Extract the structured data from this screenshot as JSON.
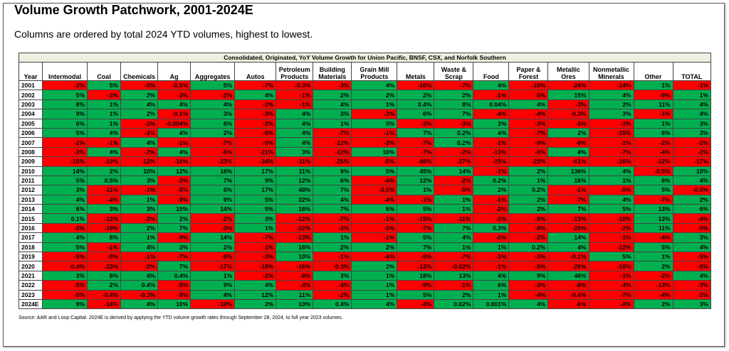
{
  "header": {
    "title": "Volume Growth Patchwork, 2001-2024E",
    "subtitle": "Columns are ordered by total 2024 YTD volumes, highest to lowest."
  },
  "table": {
    "caption": "Consolidated, Originated, YoY Volume Growth for Union Pacific, BNSF, CSX, and Norfolk Southern",
    "columns": [
      "Year",
      "Intermodal",
      "Coal",
      "Chemicals",
      "Ag",
      "Aggregates",
      "Autos",
      "Petroleum Products",
      "Building Materials",
      "Grain Mill Products",
      "Metals",
      "Waste & Scrap",
      "Food",
      "Paper & Forest",
      "Metallic Ores",
      "Nonmetallic Minerals",
      "Other",
      "TOTAL"
    ],
    "rows": [
      [
        "2001",
        "-3%",
        "5%",
        "-5%",
        "-0.5%",
        "5%",
        "-7%",
        "-0.3%",
        "-3%",
        "4%",
        "-10%",
        "-7%",
        "4%",
        "-10%",
        "-24%",
        "-14%",
        "1%",
        "-1%"
      ],
      [
        "2002",
        "5%",
        "-3%",
        "2%",
        "-3%",
        "-2%",
        "4%",
        "-1%",
        "2%",
        "2%",
        "2%",
        "2%",
        "-1%",
        "-5%",
        "15%",
        "4%",
        "-9%",
        "1%"
      ],
      [
        "2003",
        "8%",
        "1%",
        "4%",
        "4%",
        "4%",
        "-2%",
        "-1%",
        "4%",
        "1%",
        "0.4%",
        "8%",
        "0.04%",
        "4%",
        "-3%",
        "2%",
        "11%",
        "4%"
      ],
      [
        "2004",
        "9%",
        "1%",
        "2%",
        "-0.1%",
        "3%",
        "-3%",
        "4%",
        "3%",
        "-3%",
        "6%",
        "7%",
        "-4%",
        "-4%",
        "-0.3%",
        "3%",
        "-1%",
        "4%"
      ],
      [
        "2005",
        "6%",
        "1%",
        "-2%",
        "-0.004%",
        "6%",
        "-2%",
        "4%",
        "1%",
        "5%",
        "-3%",
        "-3%",
        "3%",
        "-3%",
        "-3%",
        "-3%",
        "1%",
        "3%"
      ],
      [
        "2006",
        "5%",
        "4%",
        "-1%",
        "4%",
        "2%",
        "-6%",
        "4%",
        "-7%",
        "-1%",
        "7%",
        "0.2%",
        "4%",
        "-7%",
        "2%",
        "-15%",
        "6%",
        "3%"
      ],
      [
        "2007",
        "-2%",
        "-1%",
        "4%",
        "-1%",
        "-7%",
        "-5%",
        "4%",
        "-12%",
        "-3%",
        "-7%",
        "0.2%",
        "-1%",
        "-9%",
        "-6%",
        "-1%",
        "-2%",
        "-2%"
      ],
      [
        "2008",
        "-3%",
        "4%",
        "-2%",
        "4%",
        "-6%",
        "-21%",
        "3%",
        "-12%",
        "10%",
        "-7%",
        "-2%",
        "-13%",
        "-6%",
        "4%",
        "-7%",
        "-4%",
        "-2%"
      ],
      [
        "2009",
        "-15%",
        "-13%",
        "-12%",
        "-16%",
        "-23%",
        "-34%",
        "-11%",
        "-25%",
        "-5%",
        "-46%",
        "-27%",
        "-15%",
        "-23%",
        "-61%",
        "-16%",
        "-12%",
        "-17%"
      ],
      [
        "2010",
        "14%",
        "2%",
        "10%",
        "12%",
        "16%",
        "17%",
        "11%",
        "9%",
        "5%",
        "45%",
        "14%",
        "-1%",
        "2%",
        "136%",
        "4%",
        "-0.5%",
        "10%"
      ],
      [
        "2011",
        "5%",
        "0.5%",
        "3%",
        "-3%",
        "7%",
        "9%",
        "12%",
        "6%",
        "-4%",
        "12%",
        "-2%",
        "0.2%",
        "1%",
        "16%",
        "1%",
        "6%",
        "4%"
      ],
      [
        "2012",
        "3%",
        "-11%",
        "-1%",
        "-8%",
        "6%",
        "17%",
        "48%",
        "7%",
        "-0.5%",
        "1%",
        "-5%",
        "2%",
        "0.2%",
        "-1%",
        "-5%",
        "5%",
        "-0.5%"
      ],
      [
        "2013",
        "4%",
        "-4%",
        "1%",
        "-9%",
        "9%",
        "5%",
        "32%",
        "4%",
        "-4%",
        "-1%",
        "1%",
        "-1%",
        "2%",
        "-7%",
        "4%",
        "-7%",
        "2%"
      ],
      [
        "2014",
        "6%",
        "3%",
        "3%",
        "15%",
        "14%",
        "5%",
        "16%",
        "7%",
        "6%",
        "5%",
        "1%",
        "-2%",
        "2%",
        "7%",
        "5%",
        "13%",
        "6%"
      ],
      [
        "2015",
        "0.1%",
        "-13%",
        "-2%",
        "2%",
        "-2%",
        "3%",
        "-12%",
        "-7%",
        "-1%",
        "-15%",
        "-11%",
        "-3%",
        "-5%",
        "-13%",
        "-10%",
        "13%",
        "-4%"
      ],
      [
        "2016",
        "-2%",
        "-19%",
        "2%",
        "7%",
        "-3%",
        "1%",
        "-22%",
        "-3%",
        "-3%",
        "-7%",
        "7%",
        "0.3%",
        "-8%",
        "-25%",
        "-2%",
        "11%",
        "-5%"
      ],
      [
        "2017",
        "4%",
        "8%",
        "1%",
        "-3%",
        "14%",
        "-7%",
        "-13%",
        "1%",
        "-1%",
        "5%",
        "4%",
        "-2%",
        "-2%",
        "14%",
        "-1%",
        "-4%",
        "3%"
      ],
      [
        "2018",
        "5%",
        "-1%",
        "4%",
        "3%",
        "2%",
        "-1%",
        "16%",
        "2%",
        "2%",
        "7%",
        "1%",
        "1%",
        "0.2%",
        "4%",
        "-12%",
        "5%",
        "4%"
      ],
      [
        "2019",
        "-5%",
        "-9%",
        "-1%",
        "-7%",
        "-9%",
        "-3%",
        "10%",
        "-1%",
        "-4%",
        "-8%",
        "-7%",
        "-3%",
        "-3%",
        "-0.1%",
        "5%",
        "1%",
        "-5%"
      ],
      [
        "2020",
        "-0.4%",
        "-23%",
        "-2%",
        "7%",
        "-17%",
        "-18%",
        "-16%",
        "-0.3%",
        "2%",
        "-13%",
        "-0.02%",
        "-1%",
        "-5%",
        "-26%",
        "-10%",
        "2%",
        "-6%"
      ],
      [
        "2021",
        "3%",
        "8%",
        "4%",
        "0.4%",
        "1%",
        "-2%",
        "-8%",
        "3%",
        "1%",
        "18%",
        "13%",
        "4%",
        "9%",
        "46%",
        "-1%",
        "-2%",
        "4%"
      ],
      [
        "2022",
        "-5%",
        "2%",
        "0.4%",
        "-5%",
        "9%",
        "4%",
        "-4%",
        "-4%",
        "1%",
        "-9%",
        "-1%",
        "6%",
        "-3%",
        "-8%",
        "-4%",
        "-13%",
        "-3%"
      ],
      [
        "2023",
        "-5%",
        "-0.4%",
        "-0.3%",
        "-9%",
        "4%",
        "12%",
        "11%",
        "-2%",
        "1%",
        "5%",
        "2%",
        "1%",
        "-4%",
        "-0.4%",
        "-7%",
        "-4%",
        "-2%"
      ],
      [
        "2024E",
        "9%",
        "-14%",
        "4%",
        "10%",
        "-10%",
        "2%",
        "10%",
        "0.4%",
        "4%",
        "-4%",
        "0.02%",
        "0.001%",
        "4%",
        "-6%",
        "-8%",
        "2%",
        "3%"
      ]
    ]
  },
  "footer": {
    "source": "Source: AAR and Loop Capital. 2024E is derived by applying the YTD volume growth rates through September 28, 2024, to full year 2023 volumes."
  }
}
